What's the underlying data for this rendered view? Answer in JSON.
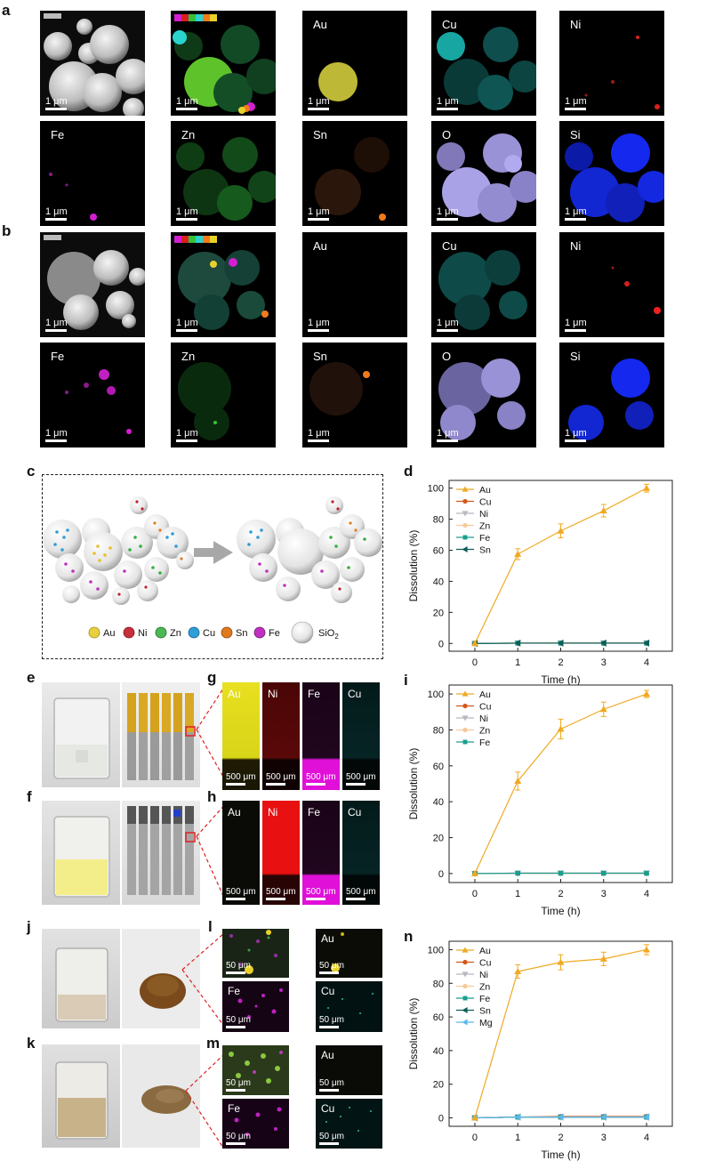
{
  "panel_letters": {
    "a": "a",
    "b": "b",
    "c": "c",
    "d": "d",
    "e": "e",
    "f": "f",
    "g": "g",
    "h": "h",
    "i": "i",
    "j": "j",
    "k": "k",
    "l": "l",
    "m": "m",
    "n": "n"
  },
  "scale_1um": "1 μm",
  "scale_500um": "500 μm",
  "scale_50um": "50 μm",
  "element_maps": {
    "Au": "Au",
    "Cu": "Cu",
    "Ni": "Ni",
    "Fe": "Fe",
    "Zn": "Zn",
    "Sn": "Sn",
    "O": "O",
    "Si": "Si"
  },
  "colors": {
    "Au": "#e8d22a",
    "Cu": "#2bd3cf",
    "Ni": "#d8201e",
    "Fe": "#d21fd2",
    "Zn": "#35c23a",
    "Sn": "#f07a1c",
    "O": "#b8b2ee",
    "Si": "#1428ee",
    "Mg": "#5bb8ea",
    "line_Au": "#f0a922",
    "line_Cu": "#d2571a",
    "line_Ni": "#b8b8c0",
    "line_Zn": "#f6c99a",
    "line_Fe": "#1b9d8f",
    "line_Sn": "#0c5e58"
  },
  "schematic_legend": [
    "Au",
    "Ni",
    "Zn",
    "Cu",
    "Sn",
    "Fe",
    "SiO2"
  ],
  "g_labels": [
    "Au",
    "Ni",
    "Fe",
    "Cu"
  ],
  "h_labels": [
    "Au",
    "Ni",
    "Fe",
    "Cu"
  ],
  "l_labels": [
    "Au",
    "Fe",
    "Cu"
  ],
  "m_labels": [
    "Au",
    "Fe",
    "Cu"
  ],
  "chart_data": [
    {
      "panel": "d",
      "type": "line",
      "xlabel": "Time (h)",
      "ylabel": "Dissolution (%)",
      "x": [
        0,
        1,
        2,
        3,
        4
      ],
      "xlim": [
        -0.6,
        4.6
      ],
      "ylim": [
        -5,
        105
      ],
      "xticks": [
        0,
        1,
        2,
        3,
        4
      ],
      "yticks": [
        0,
        20,
        40,
        60,
        80,
        100
      ],
      "series": [
        {
          "name": "Au",
          "marker": "triangle-up",
          "values": [
            0,
            57.5,
            72.5,
            85.5,
            100
          ],
          "err": [
            0,
            3.5,
            4.5,
            4.0,
            2.5
          ]
        },
        {
          "name": "Cu",
          "marker": "circle",
          "values": [
            0,
            0.2,
            0.3,
            0.3,
            0.3
          ],
          "err": [
            0,
            0,
            0,
            0,
            0
          ]
        },
        {
          "name": "Ni",
          "marker": "triangle-down",
          "values": [
            0,
            0.2,
            0.2,
            0.2,
            0.2
          ],
          "err": [
            0,
            0,
            0,
            0,
            0
          ]
        },
        {
          "name": "Zn",
          "marker": "circle",
          "values": [
            0,
            0.2,
            0.2,
            0.2,
            0.2
          ],
          "err": [
            0,
            0,
            0,
            0,
            0
          ]
        },
        {
          "name": "Fe",
          "marker": "square",
          "values": [
            0,
            0.2,
            0.2,
            0.2,
            0.2
          ],
          "err": [
            0,
            0,
            0,
            0,
            0
          ]
        },
        {
          "name": "Sn",
          "marker": "triangle-left",
          "values": [
            0,
            0.2,
            0.2,
            0.2,
            0.2
          ],
          "err": [
            0,
            0,
            0,
            0,
            0
          ]
        }
      ],
      "legend": "top-left"
    },
    {
      "panel": "i",
      "type": "line",
      "xlabel": "Time (h)",
      "ylabel": "Dissolution (%)",
      "x": [
        0,
        1,
        2,
        3,
        4
      ],
      "xlim": [
        -0.6,
        4.6
      ],
      "ylim": [
        -5,
        105
      ],
      "xticks": [
        0,
        1,
        2,
        3,
        4
      ],
      "yticks": [
        0,
        20,
        40,
        60,
        80,
        100
      ],
      "series": [
        {
          "name": "Au",
          "marker": "triangle-up",
          "values": [
            0,
            51.5,
            80.5,
            91.5,
            100
          ],
          "err": [
            0,
            5,
            5.5,
            4,
            2
          ]
        },
        {
          "name": "Cu",
          "marker": "circle",
          "values": [
            0,
            0.2,
            0.2,
            0.2,
            0.2
          ],
          "err": [
            0,
            0,
            0,
            0,
            0
          ]
        },
        {
          "name": "Ni",
          "marker": "triangle-down",
          "values": [
            0,
            0.2,
            0.2,
            0.2,
            0.2
          ],
          "err": [
            0,
            0,
            0,
            0,
            0
          ]
        },
        {
          "name": "Zn",
          "marker": "circle",
          "values": [
            0,
            0.2,
            0.2,
            0.2,
            0.2
          ],
          "err": [
            0,
            0,
            0,
            0,
            0
          ]
        },
        {
          "name": "Fe",
          "marker": "square",
          "values": [
            0,
            0.2,
            0.2,
            0.2,
            0.2
          ],
          "err": [
            0,
            0,
            0,
            0,
            0
          ]
        }
      ],
      "legend": "top-left"
    },
    {
      "panel": "n",
      "type": "line",
      "xlabel": "Time (h)",
      "ylabel": "Dissolution (%)",
      "x": [
        0,
        1,
        2,
        3,
        4
      ],
      "xlim": [
        -0.6,
        4.6
      ],
      "ylim": [
        -5,
        105
      ],
      "xticks": [
        0,
        1,
        2,
        3,
        4
      ],
      "yticks": [
        0,
        20,
        40,
        60,
        80,
        100
      ],
      "series": [
        {
          "name": "Au",
          "marker": "triangle-up",
          "values": [
            0,
            87,
            92.5,
            94.5,
            100
          ],
          "err": [
            0,
            4,
            4.5,
            4,
            3
          ]
        },
        {
          "name": "Cu",
          "marker": "circle",
          "values": [
            0,
            0.5,
            0.8,
            0.8,
            0.8
          ],
          "err": [
            0,
            0,
            0,
            0,
            0
          ]
        },
        {
          "name": "Ni",
          "marker": "triangle-down",
          "values": [
            0,
            0.5,
            0.5,
            0.5,
            0.5
          ],
          "err": [
            0,
            0,
            0,
            0,
            0
          ]
        },
        {
          "name": "Zn",
          "marker": "circle",
          "values": [
            0,
            0.5,
            0.5,
            0.5,
            0.5
          ],
          "err": [
            0,
            0,
            0,
            0,
            0
          ]
        },
        {
          "name": "Fe",
          "marker": "square",
          "values": [
            0,
            0.5,
            0.5,
            0.5,
            0.5
          ],
          "err": [
            0,
            0,
            0,
            0,
            0
          ]
        },
        {
          "name": "Sn",
          "marker": "triangle-left",
          "values": [
            0,
            0.5,
            0.5,
            0.5,
            0.5
          ],
          "err": [
            0,
            0,
            0,
            0,
            0
          ]
        },
        {
          "name": "Mg",
          "marker": "triangle-left",
          "values": [
            0,
            0.5,
            0.5,
            0.5,
            0.5
          ],
          "err": [
            0,
            0,
            0,
            0,
            0
          ]
        }
      ],
      "legend": "top-left"
    }
  ]
}
